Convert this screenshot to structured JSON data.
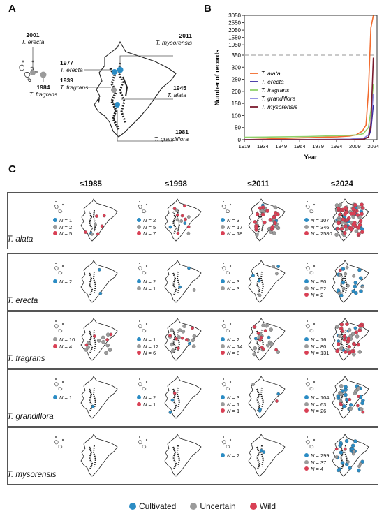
{
  "panels": {
    "a": "A",
    "b": "B",
    "c": "C"
  },
  "colors": {
    "cultivated": "#2b8cc4",
    "uncertain": "#9b9b9b",
    "wild": "#d94055",
    "alata": "#f26b2d",
    "erecta": "#3a2ca0",
    "fragrans": "#8fd16b",
    "grandiflora": "#8a86e0",
    "mysorensis": "#7a1a2c"
  },
  "panel_a": {
    "records": [
      {
        "year": "2001",
        "species": "T. erecta"
      },
      {
        "year": "1984",
        "species": "T. fragrans"
      },
      {
        "year": "1977",
        "species": "T. erecta"
      },
      {
        "year": "1939",
        "species": "T. fragrans"
      },
      {
        "year": "2011",
        "species": "T. mysorensis"
      },
      {
        "year": "1945",
        "species": "T. alata"
      },
      {
        "year": "1981",
        "species": "T. grandiflora"
      }
    ]
  },
  "chart_data": {
    "type": "line",
    "xlabel": "Year",
    "ylabel": "Number of records",
    "x_ticks": [
      "1919",
      "1934",
      "1949",
      "1964",
      "1979",
      "1994",
      "2009",
      "2024"
    ],
    "y_ticks": [
      "0",
      "50",
      "100",
      "150",
      "200",
      "250",
      "300",
      "350",
      "1050",
      "1550",
      "2050",
      "2550",
      "3050"
    ],
    "y_axis_break": 350,
    "legend_position": "center-left",
    "series": [
      {
        "name": "T. alata",
        "color": "#f26b2d",
        "x": [
          1919,
          1970,
          1995,
          2005,
          2010,
          2015,
          2018,
          2020,
          2022,
          2024
        ],
        "y": [
          0,
          8,
          12,
          15,
          20,
          35,
          60,
          200,
          2200,
          3030
        ]
      },
      {
        "name": "T. erecta",
        "color": "#3a2ca0",
        "x": [
          1919,
          1990,
          2005,
          2012,
          2016,
          2020,
          2022,
          2024
        ],
        "y": [
          0,
          1,
          2,
          4,
          5,
          10,
          40,
          145
        ]
      },
      {
        "name": "T. fragrans",
        "color": "#8fd16b",
        "x": [
          1919,
          1940,
          1970,
          1990,
          2005,
          2012,
          2016,
          2020,
          2022,
          2024
        ],
        "y": [
          10,
          11,
          13,
          16,
          18,
          20,
          25,
          50,
          120,
          230
        ]
      },
      {
        "name": "T. grandiflora",
        "color": "#8a86e0",
        "x": [
          1919,
          1990,
          2005,
          2012,
          2016,
          2020,
          2022,
          2024
        ],
        "y": [
          0,
          1,
          2,
          4,
          5,
          20,
          70,
          190
        ]
      },
      {
        "name": "T. mysorensis",
        "color": "#7a1a2c",
        "x": [
          1919,
          2005,
          2011,
          2016,
          2020,
          2022,
          2024
        ],
        "y": [
          0,
          0,
          1,
          2,
          10,
          60,
          340
        ]
      }
    ]
  },
  "panel_c": {
    "eras": [
      "≤1985",
      "≤1998",
      "≤2011",
      "≤2024"
    ],
    "rows": [
      {
        "species": "T. alata",
        "cells": [
          [
            {
              "k": "c",
              "t": "N",
              "v": "= 1"
            },
            {
              "k": "u",
              "t": "N",
              "v": "= 2"
            },
            {
              "k": "w",
              "t": "N",
              "v": "= 5"
            }
          ],
          [
            {
              "k": "c",
              "t": "N",
              "v": "= 2"
            },
            {
              "k": "u",
              "t": "N",
              "v": "= 5"
            },
            {
              "k": "w",
              "t": "N",
              "v": "= 7"
            }
          ],
          [
            {
              "k": "c",
              "t": "N",
              "v": "= 3"
            },
            {
              "k": "u",
              "t": "N",
              "v": "= 17"
            },
            {
              "k": "w",
              "t": "N",
              "v": "= 18"
            }
          ],
          [
            {
              "k": "c",
              "t": "N",
              "v": "= 107"
            },
            {
              "k": "u",
              "t": "N",
              "v": "= 346"
            },
            {
              "k": "w",
              "t": "N",
              "v": "= 2580"
            }
          ]
        ]
      },
      {
        "species": "T. erecta",
        "cells": [
          [
            {
              "k": "c",
              "t": "N",
              "v": "= 2"
            }
          ],
          [
            {
              "k": "c",
              "t": "N",
              "v": "= 2"
            },
            {
              "k": "u",
              "t": "N",
              "v": "= 1"
            }
          ],
          [
            {
              "k": "c",
              "t": "N",
              "v": "= 3"
            },
            {
              "k": "u",
              "t": "N",
              "v": "= 3"
            }
          ],
          [
            {
              "k": "c",
              "t": "N",
              "v": "= 90"
            },
            {
              "k": "u",
              "t": "N",
              "v": "= 52"
            },
            {
              "k": "w",
              "t": "N",
              "v": "= 2"
            }
          ]
        ]
      },
      {
        "species": "T. fragrans",
        "cells": [
          [
            {
              "k": "u",
              "t": "N",
              "v": "= 10"
            },
            {
              "k": "w",
              "t": "N",
              "v": "= 4"
            }
          ],
          [
            {
              "k": "c",
              "t": "N",
              "v": "= 1"
            },
            {
              "k": "u",
              "t": "N",
              "v": "= 12"
            },
            {
              "k": "w",
              "t": "N",
              "v": "= 6"
            }
          ],
          [
            {
              "k": "c",
              "t": "N",
              "v": "= 2"
            },
            {
              "k": "u",
              "t": "N",
              "v": "= 14"
            },
            {
              "k": "w",
              "t": "N",
              "v": "= 8"
            }
          ],
          [
            {
              "k": "c",
              "t": "N",
              "v": "= 16"
            },
            {
              "k": "u",
              "t": "N",
              "v": "= 80"
            },
            {
              "k": "w",
              "t": "N",
              "v": "= 131"
            }
          ]
        ]
      },
      {
        "species": "T. grandiflora",
        "cells": [
          [
            {
              "k": "c",
              "t": "N",
              "v": "= 1"
            }
          ],
          [
            {
              "k": "c",
              "t": "N",
              "v": "= 2"
            },
            {
              "k": "w",
              "t": "N",
              "v": "= 1"
            }
          ],
          [
            {
              "k": "c",
              "t": "N",
              "v": "= 3"
            },
            {
              "k": "u",
              "t": "N",
              "v": "= 1"
            },
            {
              "k": "w",
              "t": "N",
              "v": "= 1"
            }
          ],
          [
            {
              "k": "c",
              "t": "N",
              "v": "= 104"
            },
            {
              "k": "u",
              "t": "N",
              "v": "= 63"
            },
            {
              "k": "w",
              "t": "N",
              "v": "= 26"
            }
          ]
        ]
      },
      {
        "species": "T. mysorensis",
        "cells": [
          [],
          [],
          [
            {
              "k": "c",
              "t": "N",
              "v": "= 2"
            }
          ],
          [
            {
              "k": "c",
              "t": "N",
              "v": "= 299"
            },
            {
              "k": "u",
              "t": "N",
              "v": "= 37"
            },
            {
              "k": "w",
              "t": "N",
              "v": "= 4"
            }
          ]
        ]
      }
    ],
    "dot_density": [
      [
        [
          1,
          2,
          5
        ],
        [
          2,
          5,
          7
        ],
        [
          3,
          17,
          18
        ],
        [
          10,
          25,
          45
        ]
      ],
      [
        [
          2,
          0,
          0
        ],
        [
          2,
          1,
          0
        ],
        [
          3,
          3,
          0
        ],
        [
          14,
          8,
          1
        ]
      ],
      [
        [
          0,
          10,
          4
        ],
        [
          1,
          12,
          6
        ],
        [
          2,
          14,
          8
        ],
        [
          6,
          14,
          24
        ]
      ],
      [
        [
          1,
          0,
          0
        ],
        [
          2,
          0,
          1
        ],
        [
          3,
          1,
          1
        ],
        [
          18,
          10,
          6
        ]
      ],
      [
        [
          0,
          0,
          0
        ],
        [
          0,
          0,
          0
        ],
        [
          2,
          0,
          0
        ],
        [
          22,
          6,
          2
        ]
      ]
    ]
  },
  "legend": [
    {
      "key": "cultivated",
      "label": "Cultivated"
    },
    {
      "key": "uncertain",
      "label": "Uncertain"
    },
    {
      "key": "wild",
      "label": "Wild"
    }
  ]
}
